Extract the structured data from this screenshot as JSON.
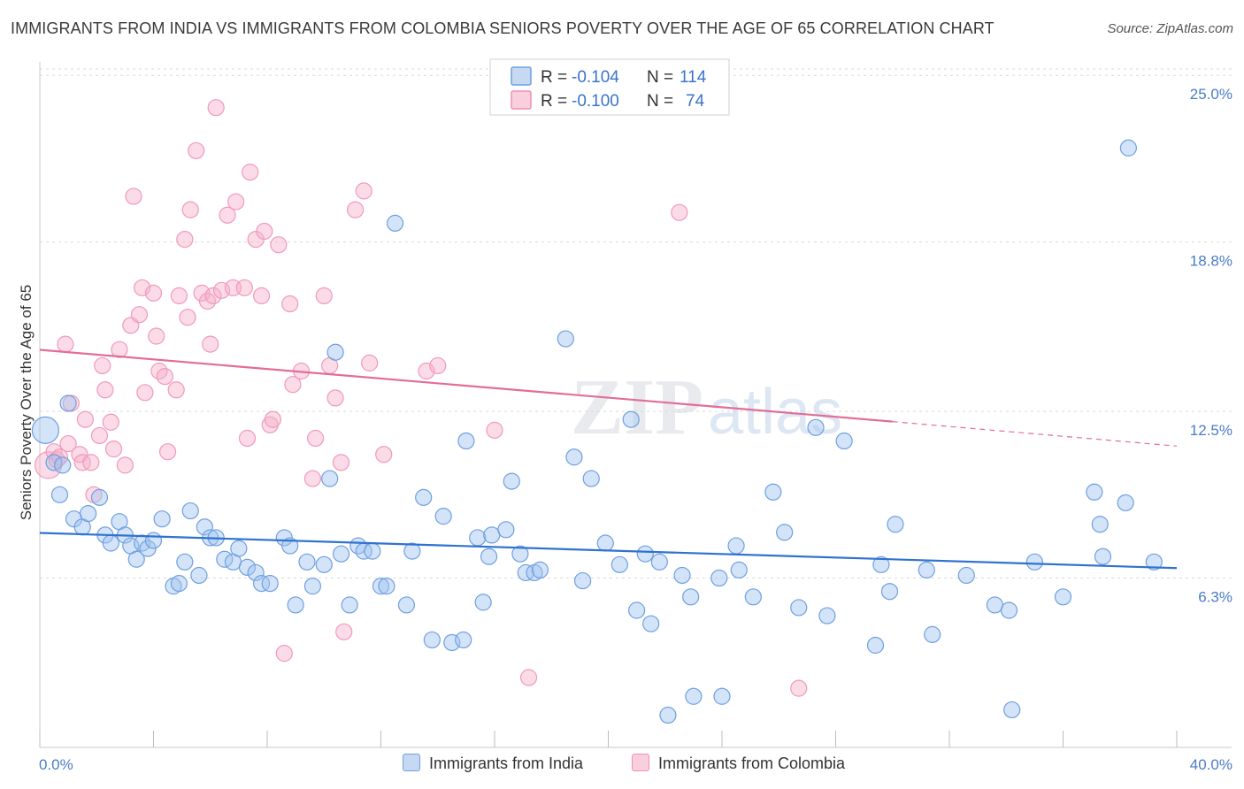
{
  "header": {
    "title": "IMMIGRANTS FROM INDIA VS IMMIGRANTS FROM COLOMBIA SENIORS POVERTY OVER THE AGE OF 65 CORRELATION CHART",
    "source": "Source: ZipAtlas.com"
  },
  "watermark": "ZIPatlas",
  "legend_top": {
    "rows": [
      {
        "r_label": "R =",
        "r_value": "-0.104",
        "n_label": "N =",
        "n_value": "114"
      },
      {
        "r_label": "R =",
        "r_value": "-0.100",
        "n_label": "N =",
        "n_value": "74"
      }
    ]
  },
  "chart_data": {
    "type": "scatter",
    "title": "IMMIGRANTS FROM INDIA VS IMMIGRANTS FROM COLOMBIA SENIORS POVERTY OVER THE AGE OF 65 CORRELATION CHART",
    "xlabel": "",
    "ylabel": "Seniors Poverty Over the Age of 65",
    "xlim": [
      0,
      40
    ],
    "ylim": [
      0,
      25.5
    ],
    "x_tick_labels": [
      "0.0%",
      "40.0%"
    ],
    "y_tick_values": [
      6.3,
      12.5,
      18.8,
      25.0
    ],
    "y_tick_labels": [
      "6.3%",
      "12.5%",
      "18.8%",
      "25.0%"
    ],
    "grid": "horizontal dashed",
    "legend": "top-center and bottom",
    "colors": {
      "india": "#6f9fe0",
      "colombia": "#f08fb1",
      "india_line": "#2f72d0",
      "colombia_line": "#e26d98"
    },
    "series": [
      {
        "name": "Immigrants from India",
        "r": -0.104,
        "n": 114,
        "trend": {
          "x0": 0,
          "y0": 7.98,
          "x1": 40,
          "y1": 6.67
        },
        "points": [
          [
            0.2,
            11.8
          ],
          [
            0.5,
            10.6
          ],
          [
            0.7,
            9.4
          ],
          [
            0.8,
            10.5
          ],
          [
            1.0,
            12.8
          ],
          [
            1.2,
            8.5
          ],
          [
            1.5,
            8.2
          ],
          [
            1.7,
            8.7
          ],
          [
            2.1,
            9.3
          ],
          [
            2.3,
            7.9
          ],
          [
            2.5,
            7.6
          ],
          [
            2.8,
            8.4
          ],
          [
            3.0,
            7.9
          ],
          [
            3.2,
            7.5
          ],
          [
            3.4,
            7.0
          ],
          [
            3.6,
            7.6
          ],
          [
            3.8,
            7.4
          ],
          [
            4.0,
            7.7
          ],
          [
            4.3,
            8.5
          ],
          [
            4.7,
            6.0
          ],
          [
            4.9,
            6.1
          ],
          [
            5.1,
            6.9
          ],
          [
            5.3,
            8.8
          ],
          [
            5.6,
            6.4
          ],
          [
            5.8,
            8.2
          ],
          [
            6.0,
            7.8
          ],
          [
            6.2,
            7.8
          ],
          [
            6.5,
            7.0
          ],
          [
            6.8,
            6.9
          ],
          [
            7.0,
            7.4
          ],
          [
            7.3,
            6.7
          ],
          [
            7.6,
            6.5
          ],
          [
            7.8,
            6.1
          ],
          [
            8.1,
            6.1
          ],
          [
            8.6,
            7.8
          ],
          [
            8.8,
            7.5
          ],
          [
            9.0,
            5.3
          ],
          [
            9.4,
            6.9
          ],
          [
            9.6,
            6.0
          ],
          [
            10.0,
            6.8
          ],
          [
            10.2,
            10.0
          ],
          [
            10.4,
            14.7
          ],
          [
            10.6,
            7.2
          ],
          [
            10.9,
            5.3
          ],
          [
            11.2,
            7.5
          ],
          [
            11.4,
            7.3
          ],
          [
            11.7,
            7.3
          ],
          [
            12.0,
            6.0
          ],
          [
            12.2,
            6.0
          ],
          [
            12.5,
            19.5
          ],
          [
            12.9,
            5.3
          ],
          [
            13.1,
            7.3
          ],
          [
            13.5,
            9.3
          ],
          [
            13.8,
            4.0
          ],
          [
            14.2,
            8.6
          ],
          [
            14.5,
            3.9
          ],
          [
            14.9,
            4.0
          ],
          [
            15.0,
            11.4
          ],
          [
            15.4,
            7.8
          ],
          [
            15.6,
            5.4
          ],
          [
            15.8,
            7.1
          ],
          [
            15.9,
            7.9
          ],
          [
            16.4,
            8.1
          ],
          [
            16.6,
            9.9
          ],
          [
            16.9,
            7.2
          ],
          [
            17.1,
            6.5
          ],
          [
            17.4,
            6.5
          ],
          [
            17.6,
            6.6
          ],
          [
            18.5,
            15.2
          ],
          [
            18.8,
            10.8
          ],
          [
            19.1,
            6.2
          ],
          [
            19.4,
            10.0
          ],
          [
            19.9,
            7.6
          ],
          [
            20.4,
            6.8
          ],
          [
            20.8,
            12.2
          ],
          [
            21.0,
            5.1
          ],
          [
            21.3,
            7.2
          ],
          [
            21.5,
            4.6
          ],
          [
            21.8,
            6.9
          ],
          [
            22.1,
            1.2
          ],
          [
            22.6,
            6.4
          ],
          [
            22.9,
            5.6
          ],
          [
            23.0,
            1.9
          ],
          [
            23.9,
            6.3
          ],
          [
            24.0,
            1.9
          ],
          [
            24.5,
            7.5
          ],
          [
            24.6,
            6.6
          ],
          [
            25.1,
            5.6
          ],
          [
            25.8,
            9.5
          ],
          [
            26.2,
            8.0
          ],
          [
            26.7,
            5.2
          ],
          [
            27.3,
            11.9
          ],
          [
            27.7,
            4.9
          ],
          [
            28.3,
            11.4
          ],
          [
            29.4,
            3.8
          ],
          [
            29.6,
            6.8
          ],
          [
            29.9,
            5.8
          ],
          [
            30.1,
            8.3
          ],
          [
            31.2,
            6.6
          ],
          [
            31.4,
            4.2
          ],
          [
            32.6,
            6.4
          ],
          [
            33.6,
            5.3
          ],
          [
            34.1,
            5.1
          ],
          [
            35.0,
            6.9
          ],
          [
            36.0,
            5.6
          ],
          [
            37.1,
            9.5
          ],
          [
            37.3,
            8.3
          ],
          [
            37.4,
            7.1
          ],
          [
            38.2,
            9.1
          ],
          [
            39.2,
            6.9
          ],
          [
            38.3,
            22.3
          ],
          [
            34.2,
            1.4
          ]
        ]
      },
      {
        "name": "Immigrants from Colombia",
        "r": -0.1,
        "n": 74,
        "trend": {
          "x0": 0,
          "y0": 14.79,
          "x1": 30,
          "y1": 12.12
        },
        "trend_dashed": {
          "x0": 30,
          "y0": 12.12,
          "x1": 40,
          "y1": 11.21
        },
        "points": [
          [
            0.3,
            10.5
          ],
          [
            0.5,
            11.0
          ],
          [
            0.6,
            10.7
          ],
          [
            0.7,
            10.8
          ],
          [
            0.9,
            15.0
          ],
          [
            1.0,
            11.3
          ],
          [
            1.1,
            12.8
          ],
          [
            1.4,
            10.9
          ],
          [
            1.5,
            10.6
          ],
          [
            1.6,
            12.2
          ],
          [
            1.8,
            10.6
          ],
          [
            1.9,
            9.4
          ],
          [
            2.1,
            11.6
          ],
          [
            2.2,
            14.2
          ],
          [
            2.3,
            13.3
          ],
          [
            2.5,
            12.1
          ],
          [
            2.6,
            11.1
          ],
          [
            2.8,
            14.8
          ],
          [
            3.0,
            10.5
          ],
          [
            3.2,
            15.7
          ],
          [
            3.3,
            20.5
          ],
          [
            3.5,
            16.1
          ],
          [
            3.6,
            17.1
          ],
          [
            3.7,
            13.2
          ],
          [
            4.0,
            16.9
          ],
          [
            4.1,
            15.3
          ],
          [
            4.2,
            14.0
          ],
          [
            4.4,
            13.8
          ],
          [
            4.5,
            11.0
          ],
          [
            4.8,
            13.3
          ],
          [
            4.9,
            16.8
          ],
          [
            5.1,
            18.9
          ],
          [
            5.2,
            16.0
          ],
          [
            5.3,
            20.0
          ],
          [
            5.5,
            22.2
          ],
          [
            5.7,
            16.9
          ],
          [
            5.9,
            16.6
          ],
          [
            6.0,
            15.0
          ],
          [
            6.1,
            16.8
          ],
          [
            6.2,
            23.8
          ],
          [
            6.4,
            17.0
          ],
          [
            6.6,
            19.8
          ],
          [
            6.8,
            17.1
          ],
          [
            6.9,
            20.3
          ],
          [
            7.2,
            17.1
          ],
          [
            7.3,
            11.5
          ],
          [
            7.4,
            21.4
          ],
          [
            7.6,
            18.9
          ],
          [
            7.8,
            16.8
          ],
          [
            7.9,
            19.2
          ],
          [
            8.1,
            12.0
          ],
          [
            8.2,
            12.2
          ],
          [
            8.4,
            18.7
          ],
          [
            8.6,
            3.5
          ],
          [
            8.8,
            16.5
          ],
          [
            8.9,
            13.5
          ],
          [
            9.2,
            14.0
          ],
          [
            9.6,
            10.0
          ],
          [
            9.7,
            11.5
          ],
          [
            10.0,
            16.8
          ],
          [
            10.2,
            14.2
          ],
          [
            10.4,
            13.0
          ],
          [
            10.6,
            10.6
          ],
          [
            10.7,
            4.3
          ],
          [
            11.1,
            20.0
          ],
          [
            11.4,
            20.7
          ],
          [
            11.6,
            14.3
          ],
          [
            12.1,
            10.9
          ],
          [
            13.6,
            14.0
          ],
          [
            14.0,
            14.2
          ],
          [
            16.0,
            11.8
          ],
          [
            17.2,
            2.6
          ],
          [
            22.5,
            19.9
          ],
          [
            26.7,
            2.2
          ]
        ]
      }
    ]
  },
  "bottom_legend": {
    "india_label": "Immigrants from India",
    "colombia_label": "Immigrants from Colombia"
  }
}
